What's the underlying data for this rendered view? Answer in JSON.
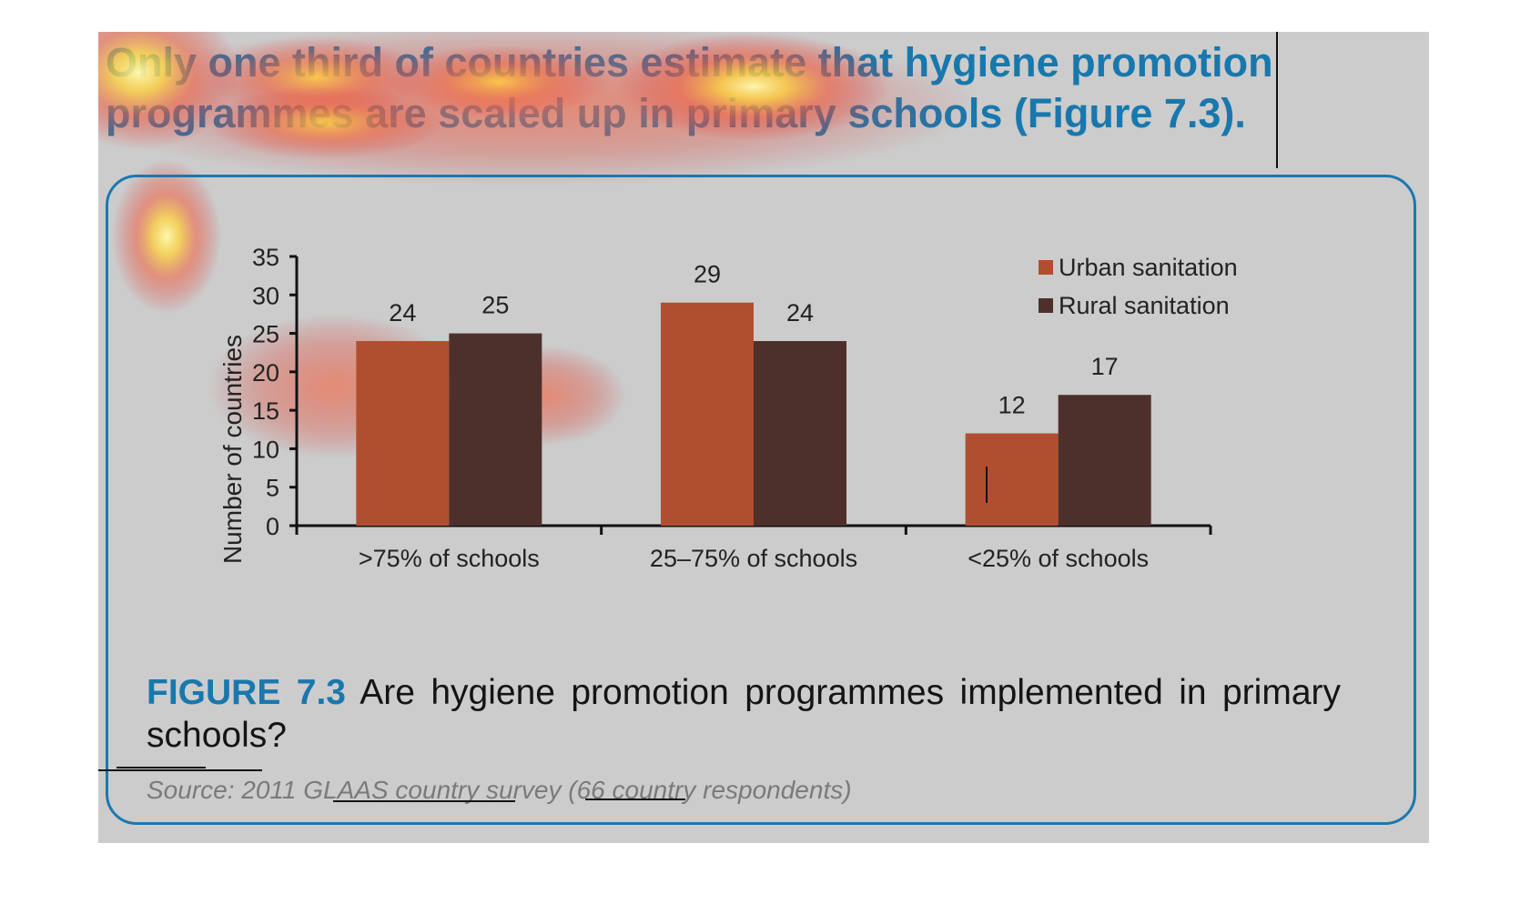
{
  "headline": {
    "text": "Only one third of countries estimate that hygiene promotion programmes are scaled up in primary schools (Figure 7.3)."
  },
  "figure": {
    "label": "FIGURE 7.3",
    "caption": "Are hygiene promotion programmes implemented in primary schools?",
    "source": "Source: 2011 GLAAS country survey (66 country respondents)"
  },
  "colors": {
    "panel_background": "#cccccc",
    "accent_blue": "#1878ad",
    "urban": "#b04f2f",
    "rural": "#4d302c"
  },
  "chart_data": {
    "type": "bar",
    "categories": [
      ">75% of schools",
      "25–75% of schools",
      "<25% of schools"
    ],
    "series": [
      {
        "name": "Urban sanitation",
        "values": [
          24,
          29,
          12
        ],
        "color": "#b04f2f"
      },
      {
        "name": "Rural sanitation",
        "values": [
          25,
          24,
          17
        ],
        "color": "#4d302c"
      }
    ],
    "ylabel": "Number of countries",
    "xlabel": "",
    "ylim": [
      0,
      35
    ],
    "yticks": [
      0,
      5,
      10,
      15,
      20,
      25,
      30,
      35
    ],
    "data_labels": true,
    "grid": false,
    "legend_position": "top-right"
  }
}
